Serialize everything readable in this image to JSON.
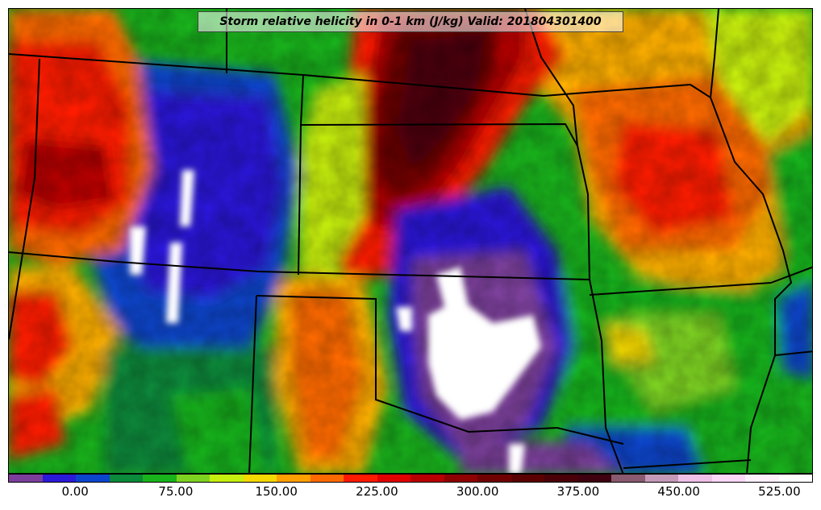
{
  "title": "Storm relative helicity in 0-1 km (J/kg) Valid: 201804301400",
  "colorbar": {
    "colors": [
      "#7b3f9b",
      "#2b19d8",
      "#0b45cc",
      "#0a8a3a",
      "#19b31c",
      "#7ed321",
      "#c6ee0e",
      "#f5d800",
      "#ff9f00",
      "#ff6a00",
      "#ff1a00",
      "#e00000",
      "#b80000",
      "#8f0000",
      "#6e0000",
      "#5a0000",
      "#4a0008",
      "#3e0010",
      "#8a5a70",
      "#c59ab8",
      "#efc0e8",
      "#ffd8f8",
      "#fff0fc",
      "#ffffff"
    ],
    "tick_labels": [
      "0.00",
      "75.00",
      "150.00",
      "225.00",
      "300.00",
      "375.00",
      "450.00",
      "525.00"
    ],
    "tick_values": [
      0,
      75,
      150,
      225,
      300,
      375,
      450,
      525
    ],
    "min": -50,
    "max": 550
  },
  "fields": [
    {
      "name": "western-high-belt",
      "color": "#ff1a00"
    },
    {
      "name": "central-dark-max",
      "color": "#6e0000"
    },
    {
      "name": "oklahoma-white-min",
      "color": "#ffffff"
    },
    {
      "name": "oklahoma-purple-min",
      "color": "#7b3f9b"
    }
  ]
}
